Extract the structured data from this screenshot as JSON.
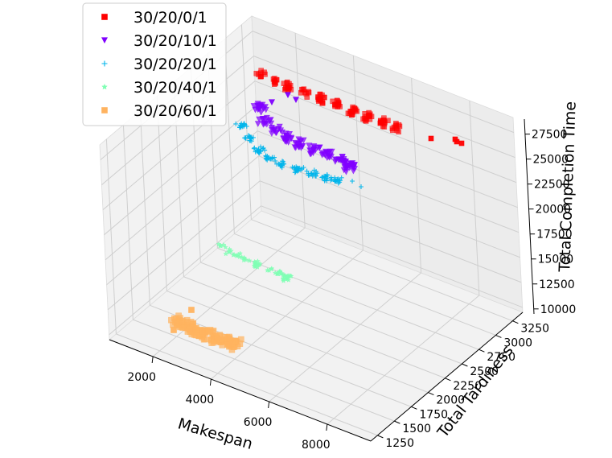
{
  "chart_data": {
    "type": "scatter",
    "projection": "3d",
    "xlabel": "Makespan",
    "ylabel": "Total Tardiness",
    "zlabel": "Total Completion Time",
    "x_ticks": [
      2000,
      4000,
      6000,
      8000
    ],
    "y_ticks": [
      1250,
      1500,
      1750,
      2000,
      2250,
      2500,
      2750,
      3000,
      3250
    ],
    "z_ticks": [
      10000,
      12500,
      15000,
      17500,
      20000,
      22500,
      25000,
      27500
    ],
    "xlim": [
      500,
      9500
    ],
    "ylim": [
      1150,
      3400
    ],
    "zlim": [
      9500,
      29000
    ],
    "grid": true,
    "legend_position": "top-left",
    "series": [
      {
        "name": "30/20/0/1",
        "color": "#ff0000",
        "marker": "square"
      },
      {
        "name": "30/20/10/1",
        "color": "#8000ff",
        "marker": "triangle-down"
      },
      {
        "name": "30/20/20/1",
        "color": "#00b5eb",
        "marker": "plus"
      },
      {
        "name": "30/20/40/1",
        "color": "#80ffb4",
        "marker": "star"
      },
      {
        "name": "30/20/60/1",
        "color": "#ffb360",
        "marker": "square"
      }
    ]
  }
}
